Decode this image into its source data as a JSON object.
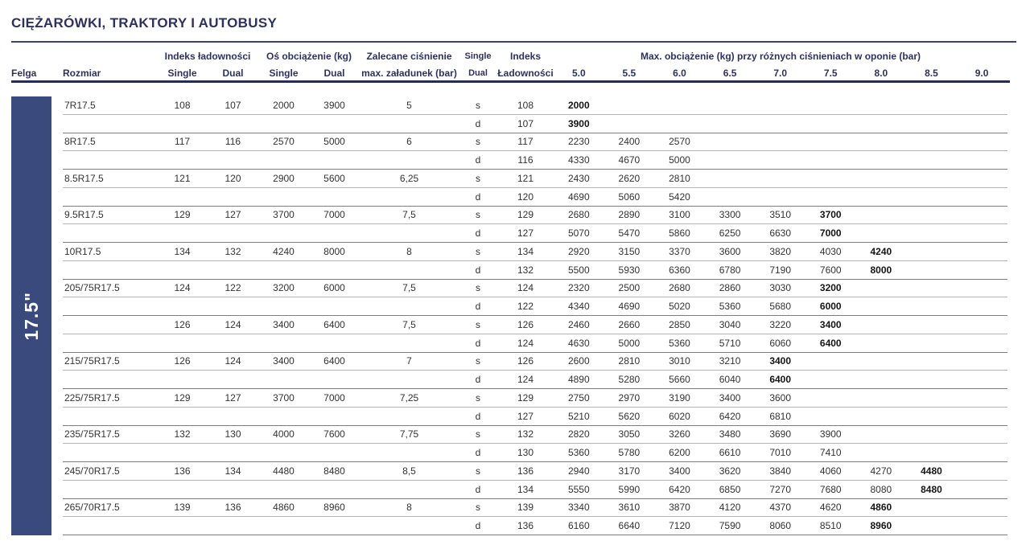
{
  "title": "CIĘŻARÓWKI, TRAKTORY I AUTOBUSY",
  "rim_label": "17.5\"",
  "header": {
    "felga": "Felga",
    "rozmiar": "Rozmiar",
    "indeks_ladownosci": "Indeks ładowności",
    "os_obciazenie": "Oś obciążenie (kg)",
    "single": "Single",
    "dual": "Dual",
    "zalecane_line1": "Zalecane ciśnienie",
    "zalecane_line2": "max. załadunek (bar)",
    "sd_line1": "Single",
    "sd_line2": "Dual",
    "indeks_line1": "Indeks",
    "indeks_line2": "Ładowności",
    "max_obciazenie": "Max. obciążenie (kg) przy różnych ciśnieniach w oponie (bar)",
    "pressures": [
      "5.0",
      "5.5",
      "6.0",
      "6.5",
      "7.0",
      "7.5",
      "8.0",
      "8.5",
      "9.0"
    ]
  },
  "colors": {
    "navy_text": "#2d3160",
    "rim_block": "#3b4a7d",
    "header_rule": "#3a4173",
    "header_thick_rule": "#262c52"
  },
  "rows": [
    {
      "rozmiar": "7R17.5",
      "idx_single": "108",
      "idx_dual": "107",
      "os_single": "2000",
      "os_dual": "3900",
      "zalecane": "5",
      "sub": [
        {
          "sd": "s",
          "indeks": "108",
          "values": [
            "2000"
          ],
          "bold_last": true
        },
        {
          "sd": "d",
          "indeks": "107",
          "values": [
            "3900"
          ],
          "bold_last": true
        }
      ]
    },
    {
      "rozmiar": "8R17.5",
      "idx_single": "117",
      "idx_dual": "116",
      "os_single": "2570",
      "os_dual": "5000",
      "zalecane": "6",
      "sub": [
        {
          "sd": "s",
          "indeks": "117",
          "values": [
            "2230",
            "2400",
            "2570"
          ],
          "bold_last": false
        },
        {
          "sd": "d",
          "indeks": "116",
          "values": [
            "4330",
            "4670",
            "5000"
          ],
          "bold_last": false
        }
      ]
    },
    {
      "rozmiar": "8.5R17.5",
      "idx_single": "121",
      "idx_dual": "120",
      "os_single": "2900",
      "os_dual": "5600",
      "zalecane": "6,25",
      "sub": [
        {
          "sd": "s",
          "indeks": "121",
          "values": [
            "2430",
            "2620",
            "2810"
          ],
          "bold_last": false
        },
        {
          "sd": "d",
          "indeks": "120",
          "values": [
            "4690",
            "5060",
            "5420"
          ],
          "bold_last": false
        }
      ]
    },
    {
      "rozmiar": "9.5R17.5",
      "idx_single": "129",
      "idx_dual": "127",
      "os_single": "3700",
      "os_dual": "7000",
      "zalecane": "7,5",
      "sub": [
        {
          "sd": "s",
          "indeks": "129",
          "values": [
            "2680",
            "2890",
            "3100",
            "3300",
            "3510",
            "3700"
          ],
          "bold_last": true
        },
        {
          "sd": "d",
          "indeks": "127",
          "values": [
            "5070",
            "5470",
            "5860",
            "6250",
            "6630",
            "7000"
          ],
          "bold_last": true
        }
      ]
    },
    {
      "rozmiar": "10R17.5",
      "idx_single": "134",
      "idx_dual": "132",
      "os_single": "4240",
      "os_dual": "8000",
      "zalecane": "8",
      "sub": [
        {
          "sd": "s",
          "indeks": "134",
          "values": [
            "2920",
            "3150",
            "3370",
            "3600",
            "3820",
            "4030",
            "4240"
          ],
          "bold_last": true
        },
        {
          "sd": "d",
          "indeks": "132",
          "values": [
            "5500",
            "5930",
            "6360",
            "6780",
            "7190",
            "7600",
            "8000"
          ],
          "bold_last": true
        }
      ]
    },
    {
      "rozmiar": "205/75R17.5",
      "idx_single": "124",
      "idx_dual": "122",
      "os_single": "3200",
      "os_dual": "6000",
      "zalecane": "7,5",
      "sub": [
        {
          "sd": "s",
          "indeks": "124",
          "values": [
            "2320",
            "2500",
            "2680",
            "2860",
            "3030",
            "3200"
          ],
          "bold_last": true
        },
        {
          "sd": "d",
          "indeks": "122",
          "values": [
            "4340",
            "4690",
            "5020",
            "5360",
            "5680",
            "6000"
          ],
          "bold_last": true
        }
      ]
    },
    {
      "rozmiar": "",
      "idx_single": "126",
      "idx_dual": "124",
      "os_single": "3400",
      "os_dual": "6400",
      "zalecane": "7,5",
      "sub": [
        {
          "sd": "s",
          "indeks": "126",
          "values": [
            "2460",
            "2660",
            "2850",
            "3040",
            "3220",
            "3400"
          ],
          "bold_last": true
        },
        {
          "sd": "d",
          "indeks": "124",
          "values": [
            "4630",
            "5000",
            "5360",
            "5710",
            "6060",
            "6400"
          ],
          "bold_last": true
        }
      ]
    },
    {
      "rozmiar": "215/75R17.5",
      "idx_single": "126",
      "idx_dual": "124",
      "os_single": "3400",
      "os_dual": "6400",
      "zalecane": "7",
      "sub": [
        {
          "sd": "s",
          "indeks": "126",
          "values": [
            "2600",
            "2810",
            "3010",
            "3210",
            "3400"
          ],
          "bold_last": true
        },
        {
          "sd": "d",
          "indeks": "124",
          "values": [
            "4890",
            "5280",
            "5660",
            "6040",
            "6400"
          ],
          "bold_last": true
        }
      ]
    },
    {
      "rozmiar": "225/75R17.5",
      "idx_single": "129",
      "idx_dual": "127",
      "os_single": "3700",
      "os_dual": "7000",
      "zalecane": "7,25",
      "sub": [
        {
          "sd": "s",
          "indeks": "129",
          "values": [
            "2750",
            "2970",
            "3190",
            "3400",
            "3600"
          ],
          "bold_last": false
        },
        {
          "sd": "d",
          "indeks": "127",
          "values": [
            "5210",
            "5620",
            "6020",
            "6420",
            "6810"
          ],
          "bold_last": false
        }
      ]
    },
    {
      "rozmiar": "235/75R17.5",
      "idx_single": "132",
      "idx_dual": "130",
      "os_single": "4000",
      "os_dual": "7600",
      "zalecane": "7,75",
      "sub": [
        {
          "sd": "s",
          "indeks": "132",
          "values": [
            "2820",
            "3050",
            "3260",
            "3480",
            "3690",
            "3900"
          ],
          "bold_last": false
        },
        {
          "sd": "d",
          "indeks": "130",
          "values": [
            "5360",
            "5780",
            "6200",
            "6610",
            "7010",
            "7410"
          ],
          "bold_last": false
        }
      ]
    },
    {
      "rozmiar": "245/70R17.5",
      "idx_single": "136",
      "idx_dual": "134",
      "os_single": "4480",
      "os_dual": "8480",
      "zalecane": "8,5",
      "sub": [
        {
          "sd": "s",
          "indeks": "136",
          "values": [
            "2940",
            "3170",
            "3400",
            "3620",
            "3840",
            "4060",
            "4270",
            "4480"
          ],
          "bold_last": true
        },
        {
          "sd": "d",
          "indeks": "134",
          "values": [
            "5550",
            "5990",
            "6420",
            "6850",
            "7270",
            "7680",
            "8080",
            "8480"
          ],
          "bold_last": true
        }
      ]
    },
    {
      "rozmiar": "265/70R17.5",
      "idx_single": "139",
      "idx_dual": "136",
      "os_single": "4860",
      "os_dual": "8960",
      "zalecane": "8",
      "sub": [
        {
          "sd": "s",
          "indeks": "139",
          "values": [
            "3340",
            "3610",
            "3870",
            "4120",
            "4370",
            "4620",
            "4860"
          ],
          "bold_last": true
        },
        {
          "sd": "d",
          "indeks": "136",
          "values": [
            "6160",
            "6640",
            "7120",
            "7590",
            "8060",
            "8510",
            "8960"
          ],
          "bold_last": true
        }
      ]
    }
  ]
}
